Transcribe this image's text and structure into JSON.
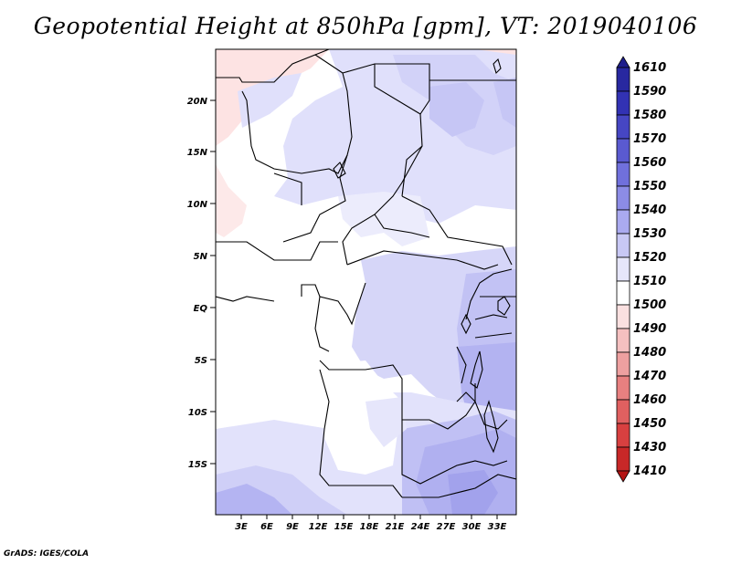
{
  "title": "Geopotential Height at 850hPa [gpm], VT: 2019040106",
  "credit": "GrADS: IGES/COLA",
  "map": {
    "lat_labels": [
      "20N",
      "15N",
      "10N",
      "5N",
      "EQ",
      "5S",
      "10S",
      "15S"
    ],
    "lon_labels": [
      "3E",
      "6E",
      "9E",
      "12E",
      "15E",
      "18E",
      "21E",
      "24E",
      "27E",
      "30E",
      "33E"
    ]
  },
  "colorbar": {
    "levels": [
      "1610",
      "1590",
      "1580",
      "1570",
      "1560",
      "1550",
      "1540",
      "1530",
      "1520",
      "1510",
      "1500",
      "1490",
      "1480",
      "1470",
      "1460",
      "1450",
      "1430",
      "1410"
    ],
    "colors": [
      "#1e1e8c",
      "#2828a0",
      "#3232b4",
      "#4646c3",
      "#5a5ad0",
      "#7070dc",
      "#8c8ce6",
      "#aaaaf0",
      "#c8c8f5",
      "#e6e6fa",
      "#ffffff",
      "#fae0e0",
      "#f5c0c0",
      "#eea0a0",
      "#e88080",
      "#e06060",
      "#d84040",
      "#c82828",
      "#b41414"
    ]
  }
}
